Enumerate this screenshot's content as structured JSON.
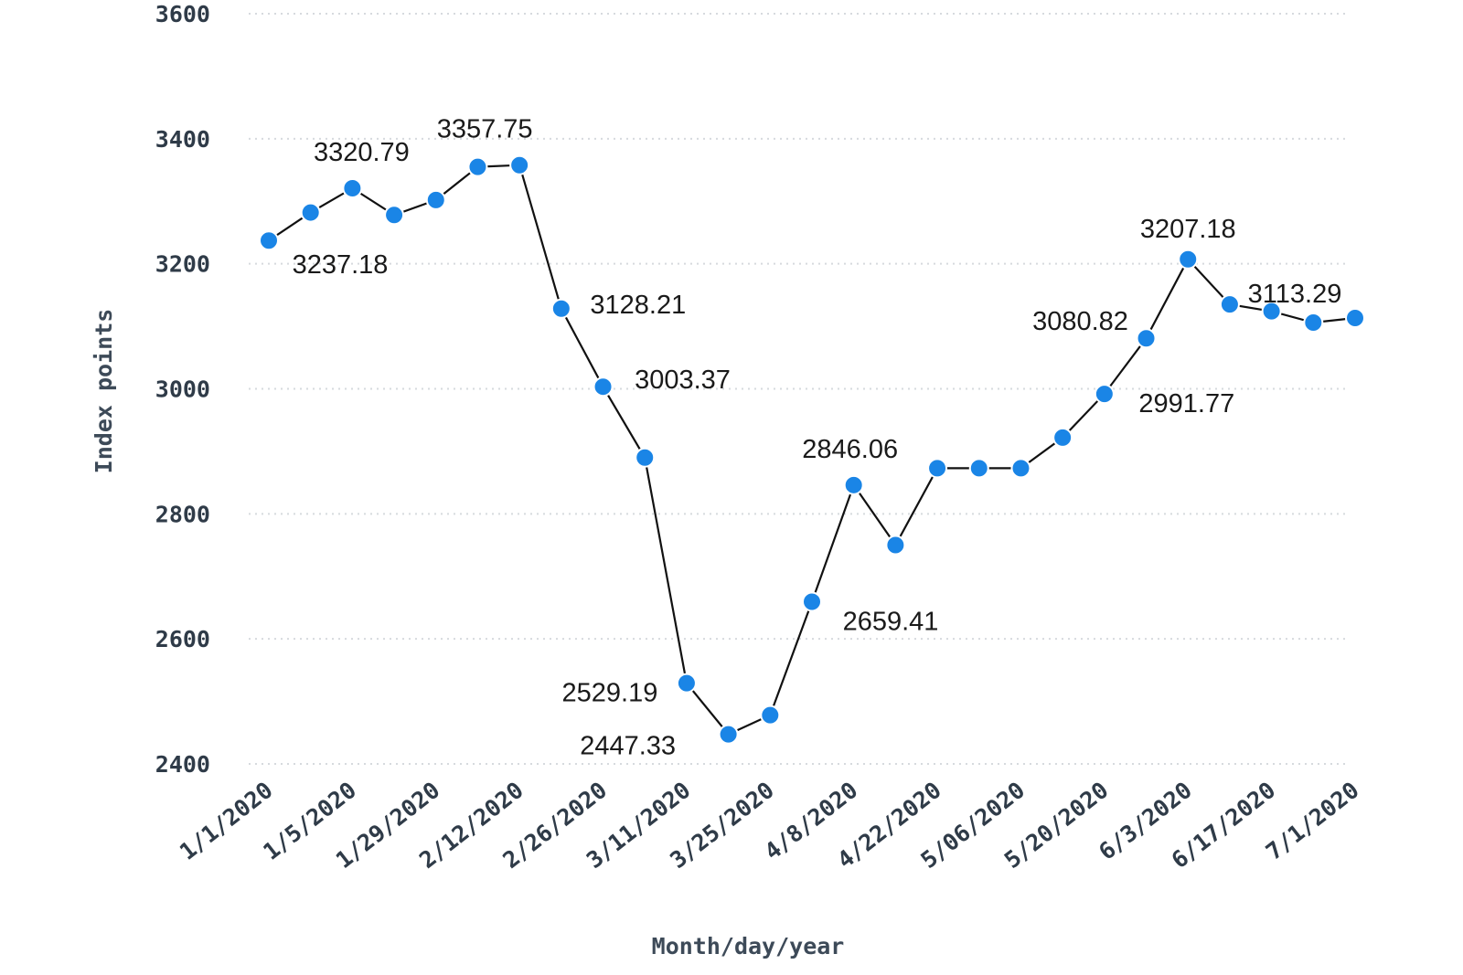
{
  "chart_data": {
    "type": "line",
    "xlabel": "Month/day/year",
    "ylabel": "Index points",
    "ylim": [
      2400,
      3600
    ],
    "y_ticks": [
      "2400",
      "2600",
      "2800",
      "3000",
      "3200",
      "3400",
      "3600"
    ],
    "x_tick_labels": [
      "1/1/2020",
      "1/5/2020",
      "1/29/2020",
      "2/12/2020",
      "2/26/2020",
      "3/11/2020",
      "3/25/2020",
      "4/8/2020",
      "4/22/2020",
      "5/06/2020",
      "5/20/2020",
      "6/3/2020",
      "6/17/2020",
      "7/1/2020"
    ],
    "grid": true,
    "point_color": "#1a85e6",
    "line_color": "#111111",
    "values": [
      3237.18,
      3282,
      3320.79,
      3278,
      3302,
      3355,
      3357.75,
      3128.21,
      3003.37,
      2890,
      2529.19,
      2447.33,
      2478,
      2659.41,
      2846.06,
      2750,
      2873,
      2873,
      2873,
      2922,
      2991.77,
      3080.82,
      3207.18,
      3135,
      3124,
      3106,
      3113.29
    ],
    "data_labels": [
      {
        "point": 0,
        "text": "3237.18"
      },
      {
        "point": 2,
        "text": "3320.79"
      },
      {
        "point": 6,
        "text": "3357.75"
      },
      {
        "point": 7,
        "text": "3128.21"
      },
      {
        "point": 8,
        "text": "3003.37"
      },
      {
        "point": 10,
        "text": "2529.19"
      },
      {
        "point": 11,
        "text": "2447.33"
      },
      {
        "point": 13,
        "text": "2659.41"
      },
      {
        "point": 14,
        "text": "2846.06"
      },
      {
        "point": 20,
        "text": "2991.77"
      },
      {
        "point": 21,
        "text": "3080.82"
      },
      {
        "point": 22,
        "text": "3207.18"
      },
      {
        "point": 26,
        "text": "3113.29"
      }
    ]
  }
}
